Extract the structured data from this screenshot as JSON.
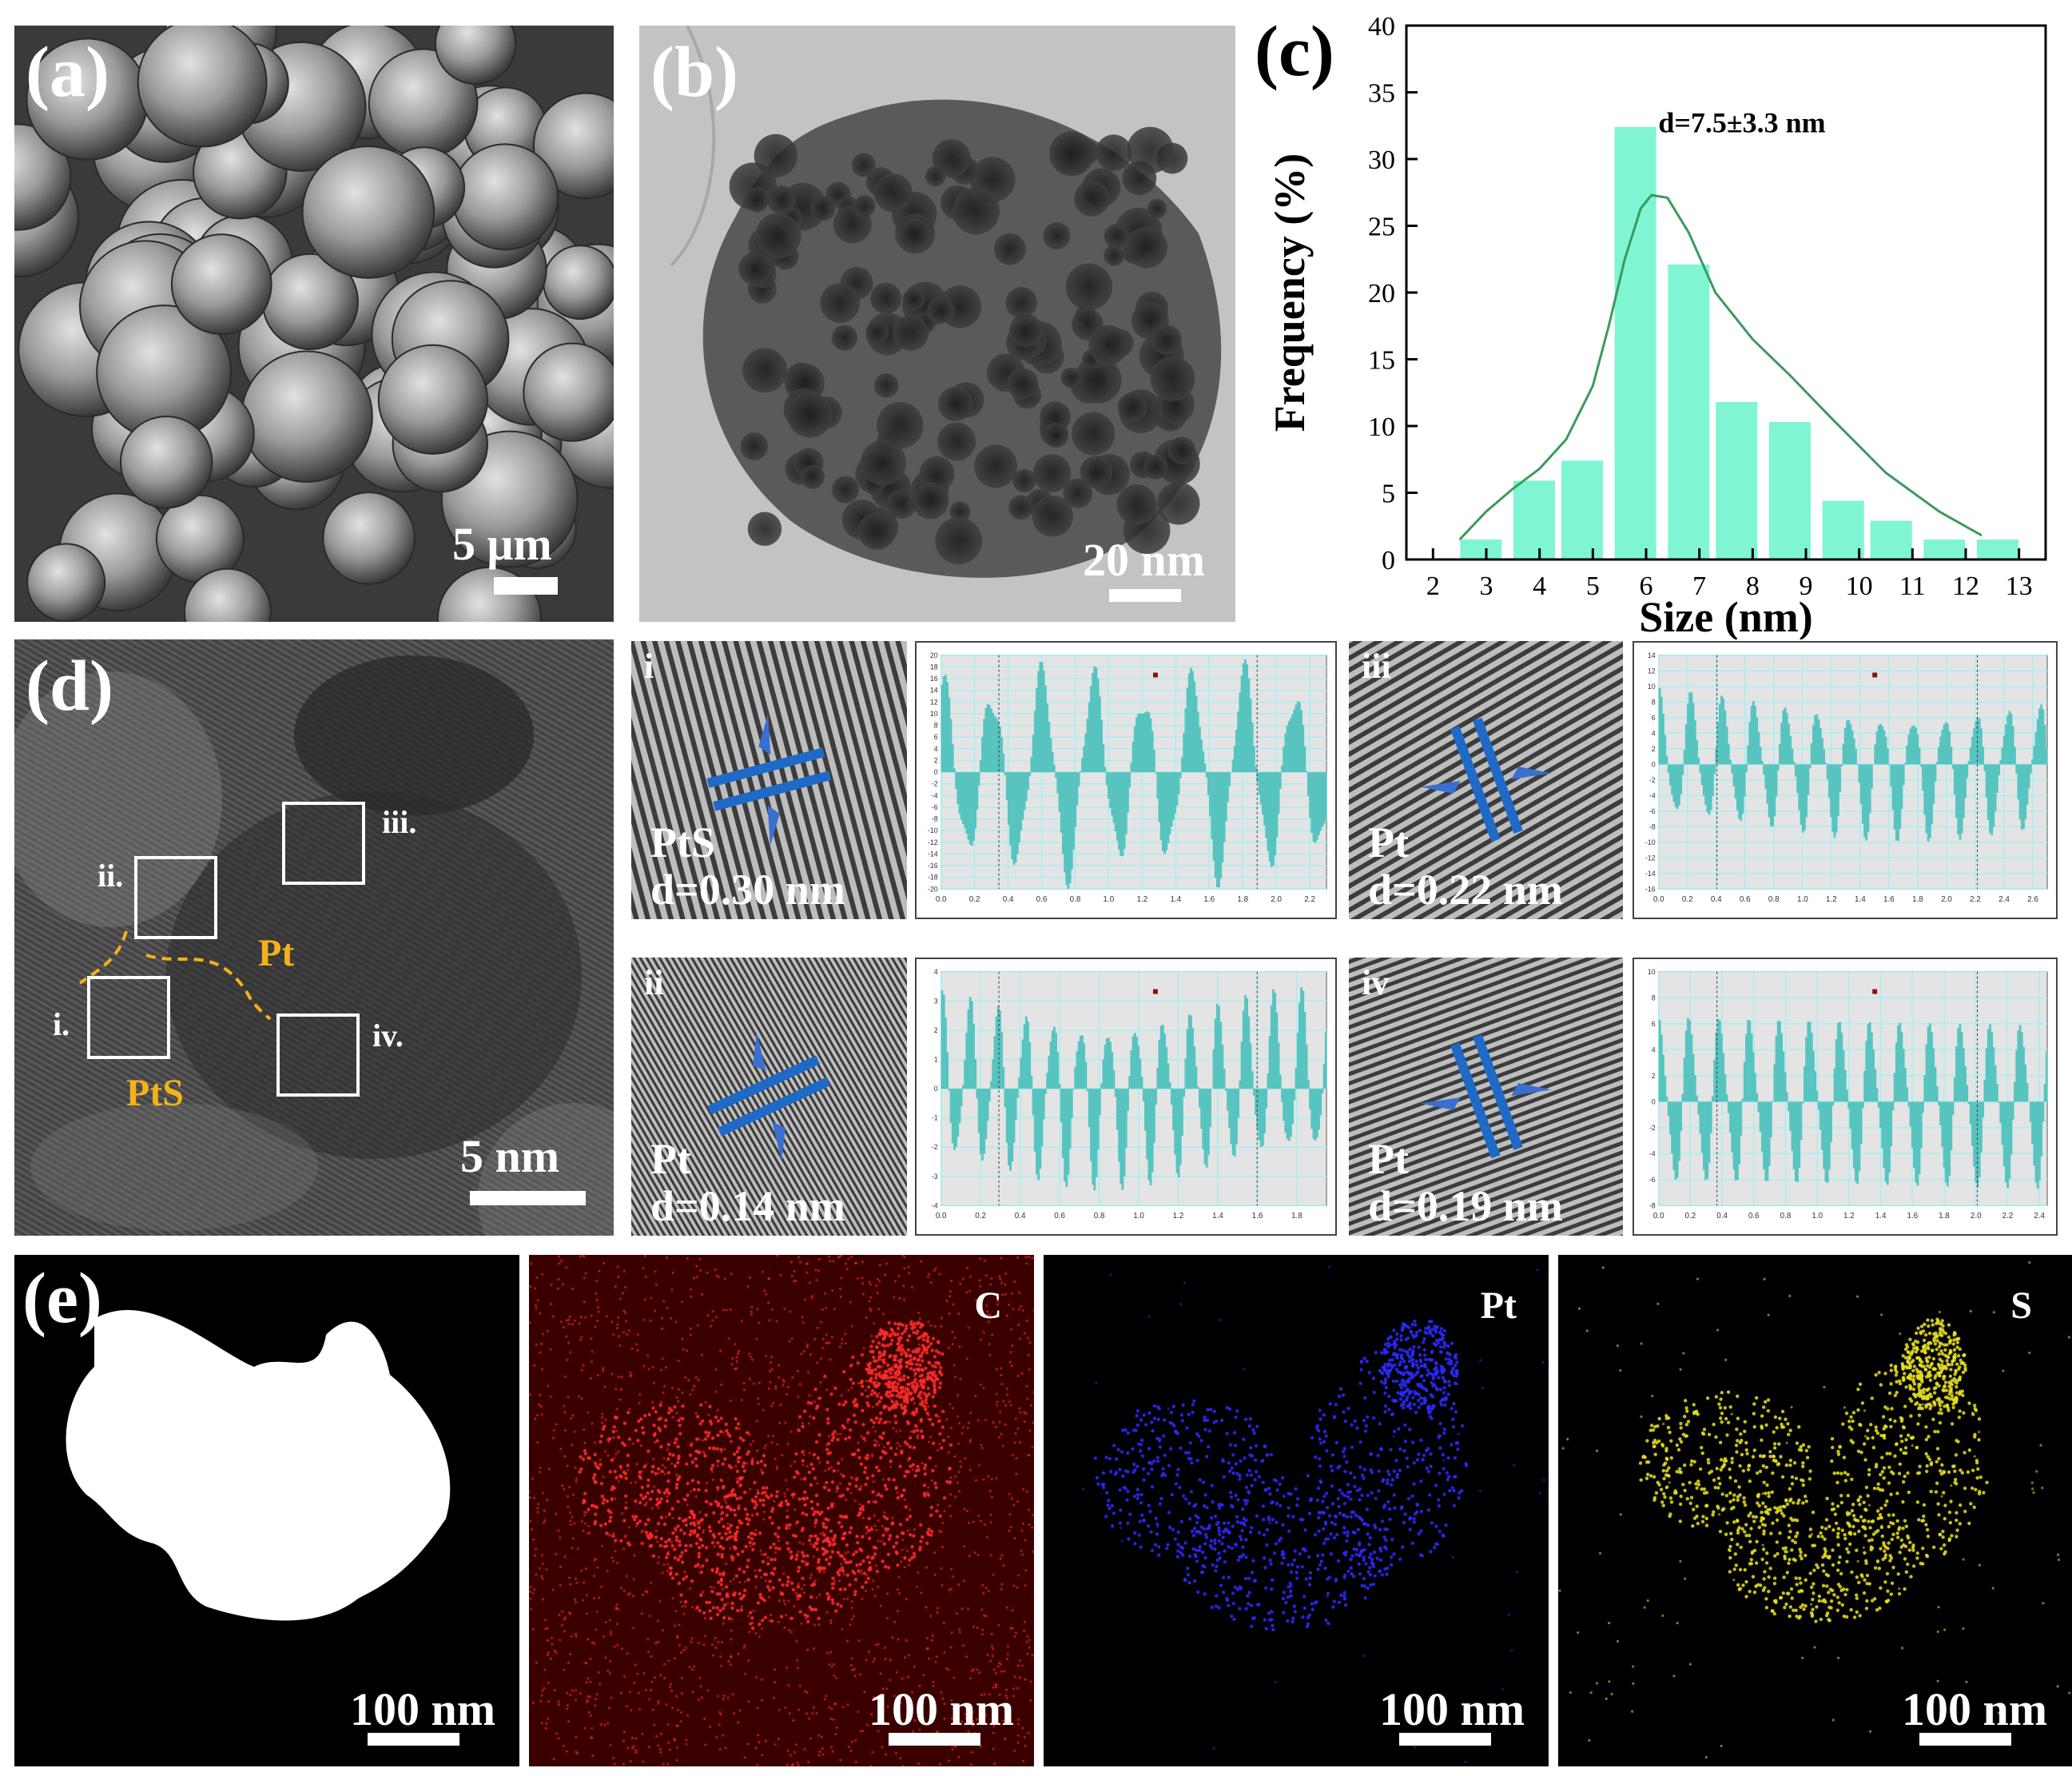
{
  "panels": {
    "a": {
      "label": "(a)",
      "scale": "5 μm"
    },
    "b": {
      "label": "(b)",
      "scale": "20 nm"
    },
    "c": {
      "label": "(c)",
      "annotation": "d=7.5±3.3 nm"
    },
    "d": {
      "label": "(d)",
      "scale": "5 nm",
      "roi": [
        "i.",
        "ii.",
        "iii.",
        "iv."
      ],
      "phases": [
        "Pt",
        "PtS"
      ]
    },
    "fft": [
      {
        "roman": "i",
        "phase": "PtS",
        "d": "d=0.30 nm"
      },
      {
        "roman": "ii",
        "phase": "Pt",
        "d": "d=0.14 nm"
      },
      {
        "roman": "iii",
        "phase": "Pt",
        "d": "d=0.22 nm"
      },
      {
        "roman": "iv",
        "phase": "Pt",
        "d": "d=0.19 nm"
      }
    ],
    "e": {
      "label": "(e)",
      "elements": [
        "C",
        "Pt",
        "S"
      ],
      "scale": "100 nm"
    }
  },
  "colors": {
    "histogram": "#7ff5d3",
    "fit": "#3a9a5a",
    "profile": "#58c4c0",
    "grid": "#a6eef2",
    "c_map": "#ff2020",
    "pt_map": "#2020ff",
    "s_map": "#e8e020",
    "phase": "#f3b21a",
    "arrow": "#3a6fd0"
  },
  "chart_data": [
    {
      "type": "bar",
      "title": "",
      "xlabel": "Size (nm)",
      "ylabel": "Frequency (%)",
      "xlim": [
        1.5,
        13.5
      ],
      "ylim": [
        0,
        40
      ],
      "xticks": [
        "2",
        "3",
        "4",
        "5",
        "6",
        "7",
        "8",
        "9",
        "10",
        "11",
        "12",
        "13"
      ],
      "yticks": [
        "0",
        "5",
        "10",
        "15",
        "20",
        "25",
        "30",
        "35",
        "40"
      ],
      "categories": [
        "2.9",
        "3.9",
        "4.8",
        "5.8",
        "6.8",
        "7.7",
        "8.7",
        "9.7",
        "10.6",
        "11.6",
        "12.6"
      ],
      "series": [
        {
          "name": "frequency",
          "values": [
            1.5,
            5.9,
            7.4,
            32.4,
            22.1,
            11.8,
            10.3,
            4.4,
            2.9,
            1.5,
            1.5
          ]
        },
        {
          "name": "lognormal fit",
          "x": [
            2.5,
            3,
            3.5,
            4,
            4.5,
            5,
            5.3,
            5.6,
            5.9,
            6.1,
            6.4,
            6.8,
            7.3,
            8,
            8.7,
            9.5,
            10.5,
            11.5,
            12.3
          ],
          "values": [
            1.5,
            3.6,
            5.3,
            6.8,
            9,
            13,
            17.5,
            22.5,
            26.3,
            27.3,
            27.1,
            24.5,
            20,
            16.5,
            13.8,
            10.5,
            6.5,
            3.6,
            1.8
          ]
        }
      ]
    },
    {
      "type": "line",
      "title": "i",
      "x_range": [
        0,
        2.3
      ],
      "xticks": [
        "0.0",
        "0.2",
        "0.4",
        "0.6",
        "0.8",
        "1.0",
        "1.2",
        "1.4",
        "1.6",
        "1.8",
        "2.0",
        "2.2"
      ],
      "yticks": [
        "-20",
        "-18",
        "-16",
        "-14",
        "-12",
        "-10",
        "-8",
        "-6",
        "-4",
        "-2",
        "0",
        "2",
        "4",
        "6",
        "8",
        "10",
        "12",
        "14",
        "16",
        "18",
        "20"
      ],
      "period_nm": 0.3,
      "amplitude": 20
    },
    {
      "type": "line",
      "title": "ii",
      "x_range": [
        0,
        1.95
      ],
      "xticks": [
        "0.0",
        "0.2",
        "0.4",
        "0.6",
        "0.8",
        "1.0",
        "1.2",
        "1.4",
        "1.6",
        "1.8"
      ],
      "yticks": [
        "-4",
        "-3",
        "-2",
        "-1",
        "0",
        "1",
        "2",
        "3",
        "4"
      ],
      "period_nm": 0.14,
      "amplitude": 3.5
    },
    {
      "type": "line",
      "title": "iii",
      "x_range": [
        0,
        2.7
      ],
      "xticks": [
        "0.0",
        "0.2",
        "0.4",
        "0.6",
        "0.8",
        "1.0",
        "1.2",
        "1.4",
        "1.6",
        "1.8",
        "2.0",
        "2.2",
        "2.4",
        "2.6"
      ],
      "yticks": [
        "-16",
        "-14",
        "-12",
        "-10",
        "-8",
        "-6",
        "-4",
        "-2",
        "0",
        "2",
        "4",
        "6",
        "8",
        "10",
        "12",
        "14"
      ],
      "period_nm": 0.22,
      "amplitude": 10
    },
    {
      "type": "line",
      "title": "iv",
      "x_range": [
        0,
        2.45
      ],
      "xticks": [
        "0.0",
        "0.2",
        "0.4",
        "0.6",
        "0.8",
        "1.0",
        "1.2",
        "1.4",
        "1.6",
        "1.8",
        "2.0",
        "2.2",
        "2.4"
      ],
      "yticks": [
        "-8",
        "-6",
        "-4",
        "-2",
        "0",
        "2",
        "4",
        "6",
        "8",
        "10"
      ],
      "period_nm": 0.19,
      "amplitude": 8
    }
  ]
}
